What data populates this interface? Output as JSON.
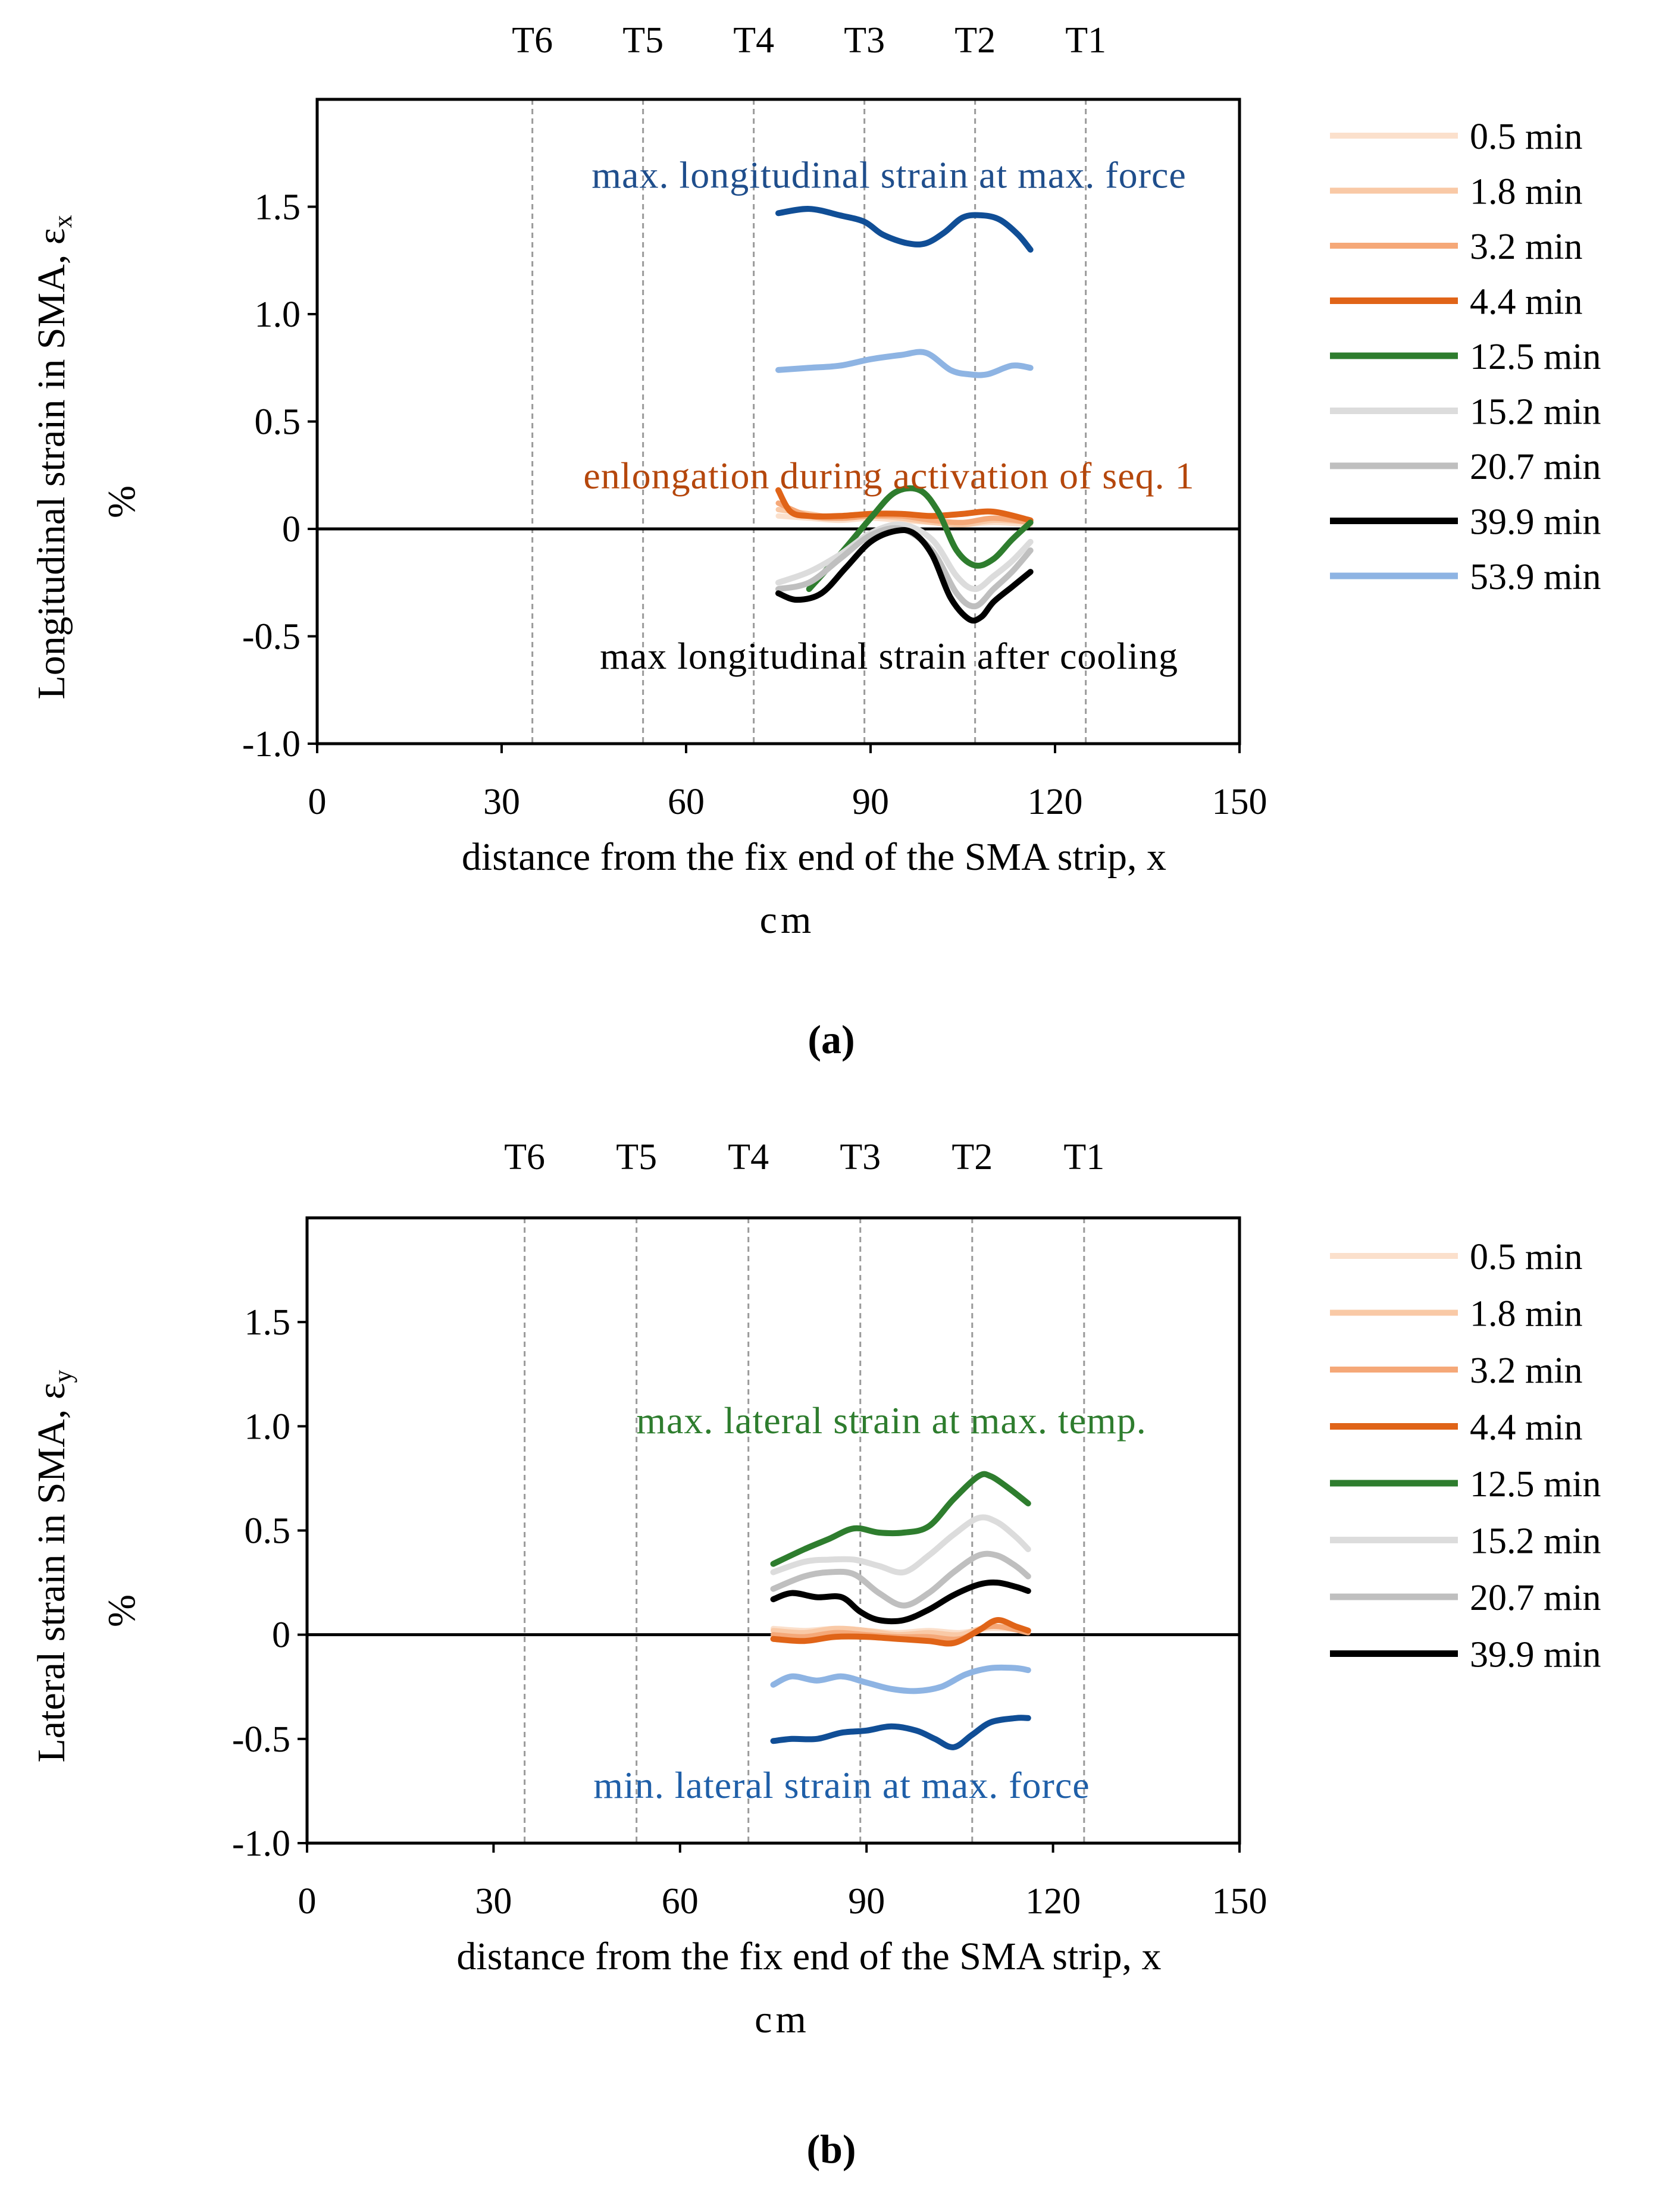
{
  "chart_data": [
    {
      "type": "line",
      "panel_label": "(a)",
      "xlabel_line1": "distance from the fix end of the SMA strip, x",
      "xlabel_line2": "cm",
      "ylabel_main": "Longitudinal strain in SMA, ε",
      "ylabel_sub": "x",
      "ylabel_unit": "%",
      "xlim": [
        0,
        150
      ],
      "ylim": [
        -1.0,
        2.0
      ],
      "xticks": [
        0,
        30,
        60,
        90,
        120,
        150
      ],
      "xtick_labels": [
        "0",
        "30",
        "60",
        "90",
        "120",
        "150"
      ],
      "yticks": [
        -1.0,
        -0.5,
        0,
        0.5,
        1.0,
        1.5
      ],
      "ytick_labels": [
        "-1.0",
        "-0.5",
        "0",
        "0.5",
        "1.0",
        "1.5"
      ],
      "sensors": [
        {
          "label": "T6",
          "x": 35
        },
        {
          "label": "T5",
          "x": 53
        },
        {
          "label": "T4",
          "x": 71
        },
        {
          "label": "T3",
          "x": 89
        },
        {
          "label": "T2",
          "x": 107
        },
        {
          "label": "T1",
          "x": 125
        }
      ],
      "annotations": [
        {
          "text": "max. longitudinal strain at max. force",
          "x": 93,
          "y": 1.65,
          "color": "#1f4e8c"
        },
        {
          "text": "enlongation during activation of seq. 1",
          "x": 93,
          "y": 0.25,
          "color": "#b5470c"
        },
        {
          "text": "max longitudinal strain after cooling",
          "x": 93,
          "y": -0.59,
          "color": "#000000"
        }
      ],
      "series": [
        {
          "name": "0.5 min",
          "color": "#fbe0cc",
          "width": 7,
          "x": [
            75,
            80,
            85,
            90,
            95,
            100,
            105,
            110,
            116
          ],
          "y": [
            0.06,
            0.05,
            0.04,
            0.05,
            0.04,
            0.03,
            0.02,
            0.03,
            0.02
          ]
        },
        {
          "name": "1.8 min",
          "color": "#f9c9a6",
          "width": 7,
          "x": [
            75,
            80,
            85,
            90,
            95,
            100,
            105,
            110,
            116
          ],
          "y": [
            0.09,
            0.07,
            0.05,
            0.06,
            0.05,
            0.03,
            0.02,
            0.04,
            0.03
          ]
        },
        {
          "name": "3.2 min",
          "color": "#f5a878",
          "width": 7,
          "x": [
            75,
            80,
            85,
            90,
            95,
            100,
            105,
            110,
            116
          ],
          "y": [
            0.12,
            0.06,
            0.05,
            0.06,
            0.06,
            0.04,
            0.03,
            0.05,
            0.03
          ]
        },
        {
          "name": "4.4 min",
          "color": "#e06418",
          "width": 8,
          "x": [
            75,
            77,
            80,
            85,
            90,
            95,
            100,
            105,
            110,
            116
          ],
          "y": [
            0.18,
            0.08,
            0.06,
            0.06,
            0.07,
            0.07,
            0.06,
            0.07,
            0.08,
            0.04
          ]
        },
        {
          "name": "12.5 min",
          "color": "#2e7d2e",
          "width": 8,
          "x": [
            80,
            85,
            90,
            94,
            98,
            101,
            104,
            107,
            110,
            113,
            116
          ],
          "y": [
            -0.28,
            -0.12,
            0.05,
            0.17,
            0.18,
            0.08,
            -0.1,
            -0.17,
            -0.14,
            -0.05,
            0.03
          ]
        },
        {
          "name": "15.2 min",
          "color": "#dcdcdc",
          "width": 8,
          "x": [
            75,
            80,
            85,
            90,
            95,
            100,
            104,
            107,
            110,
            113,
            116
          ],
          "y": [
            -0.25,
            -0.2,
            -0.12,
            -0.02,
            0.02,
            -0.05,
            -0.22,
            -0.28,
            -0.22,
            -0.15,
            -0.06
          ]
        },
        {
          "name": "20.7 min",
          "color": "#bfbfbf",
          "width": 8,
          "x": [
            75,
            80,
            85,
            90,
            95,
            100,
            104,
            107,
            110,
            113,
            116
          ],
          "y": [
            -0.28,
            -0.25,
            -0.14,
            -0.03,
            0.0,
            -0.1,
            -0.3,
            -0.36,
            -0.28,
            -0.2,
            -0.1
          ]
        },
        {
          "name": "39.9 min",
          "color": "#000000",
          "width": 8,
          "x": [
            75,
            78,
            82,
            86,
            90,
            94,
            97,
            100,
            103,
            106,
            108,
            110,
            113,
            116
          ],
          "y": [
            -0.3,
            -0.33,
            -0.3,
            -0.18,
            -0.06,
            -0.01,
            -0.02,
            -0.12,
            -0.32,
            -0.42,
            -0.41,
            -0.34,
            -0.27,
            -0.2
          ]
        },
        {
          "name": "53.9 min",
          "color": "#8eb4e3",
          "width": 8,
          "x": [
            75,
            80,
            85,
            90,
            95,
            99,
            103,
            106,
            109,
            113,
            116
          ],
          "y": [
            0.74,
            0.75,
            0.76,
            0.79,
            0.81,
            0.82,
            0.74,
            0.72,
            0.72,
            0.76,
            0.75
          ]
        },
        {
          "name": "",
          "color": "#104e96",
          "width": 8,
          "x": [
            75,
            80,
            85,
            89,
            92,
            96,
            99,
            102,
            105,
            108,
            111,
            114,
            116
          ],
          "y": [
            1.47,
            1.49,
            1.46,
            1.43,
            1.37,
            1.33,
            1.33,
            1.38,
            1.45,
            1.46,
            1.44,
            1.37,
            1.3
          ]
        }
      ]
    },
    {
      "type": "line",
      "panel_label": "(b)",
      "xlabel_line1": "distance from the fix end of the SMA strip, x",
      "xlabel_line2": "cm",
      "ylabel_main": "Lateral strain in SMA, ε",
      "ylabel_sub": "y",
      "ylabel_unit": "%",
      "xlim": [
        0,
        150
      ],
      "ylim": [
        -1.0,
        2.0
      ],
      "xticks": [
        0,
        30,
        60,
        90,
        120,
        150
      ],
      "xtick_labels": [
        "0",
        "30",
        "60",
        "90",
        "120",
        "150"
      ],
      "yticks": [
        -1.0,
        -0.5,
        0,
        0.5,
        1.0,
        1.5
      ],
      "ytick_labels": [
        "-1.0",
        "-0.5",
        "0",
        "0.5",
        "1.0",
        "1.5"
      ],
      "sensors": [
        {
          "label": "T6",
          "x": 35
        },
        {
          "label": "T5",
          "x": 53
        },
        {
          "label": "T4",
          "x": 71
        },
        {
          "label": "T3",
          "x": 89
        },
        {
          "label": "T2",
          "x": 107
        },
        {
          "label": "T1",
          "x": 125
        }
      ],
      "annotations": [
        {
          "text": "max. lateral strain at max. temp.",
          "x": 94,
          "y": 1.03,
          "color": "#2e7d2e"
        },
        {
          "text": "min. lateral strain at max. force",
          "x": 86,
          "y": -0.72,
          "color": "#1f5fa8"
        }
      ],
      "series": [
        {
          "name": "0.5 min",
          "color": "#fbe0cc",
          "width": 7,
          "x": [
            75,
            80,
            85,
            90,
            95,
            100,
            105,
            110,
            116
          ],
          "y": [
            0.03,
            0.02,
            0.03,
            0.02,
            0.01,
            0.02,
            0.01,
            0.03,
            0.02
          ]
        },
        {
          "name": "1.8 min",
          "color": "#f9c9a6",
          "width": 7,
          "x": [
            75,
            80,
            85,
            90,
            95,
            100,
            105,
            110,
            116
          ],
          "y": [
            0.02,
            0.01,
            0.03,
            0.02,
            0.0,
            0.01,
            0.0,
            0.04,
            0.02
          ]
        },
        {
          "name": "3.2 min",
          "color": "#f5a878",
          "width": 7,
          "x": [
            75,
            80,
            85,
            90,
            95,
            100,
            105,
            110,
            116
          ],
          "y": [
            0.0,
            -0.01,
            0.01,
            0.0,
            -0.01,
            -0.01,
            -0.02,
            0.04,
            0.01
          ]
        },
        {
          "name": "4.4 min",
          "color": "#e06418",
          "width": 8,
          "x": [
            75,
            80,
            85,
            90,
            95,
            100,
            104,
            108,
            111,
            114,
            116
          ],
          "y": [
            -0.02,
            -0.03,
            -0.01,
            -0.01,
            -0.02,
            -0.03,
            -0.04,
            0.02,
            0.07,
            0.04,
            0.02
          ]
        },
        {
          "name": "12.5 min",
          "color": "#2e7d2e",
          "width": 8,
          "x": [
            75,
            80,
            84,
            88,
            92,
            96,
            100,
            104,
            108,
            110,
            113,
            116
          ],
          "y": [
            0.34,
            0.41,
            0.46,
            0.51,
            0.49,
            0.49,
            0.52,
            0.65,
            0.76,
            0.76,
            0.7,
            0.63
          ]
        },
        {
          "name": "15.2 min",
          "color": "#dcdcdc",
          "width": 8,
          "x": [
            75,
            80,
            84,
            88,
            92,
            96,
            100,
            104,
            108,
            111,
            114,
            116
          ],
          "y": [
            0.3,
            0.35,
            0.36,
            0.36,
            0.33,
            0.3,
            0.38,
            0.48,
            0.56,
            0.54,
            0.47,
            0.41
          ]
        },
        {
          "name": "20.7 min",
          "color": "#bfbfbf",
          "width": 8,
          "x": [
            75,
            80,
            84,
            88,
            92,
            96,
            100,
            104,
            108,
            111,
            114,
            116
          ],
          "y": [
            0.22,
            0.28,
            0.3,
            0.29,
            0.2,
            0.14,
            0.2,
            0.3,
            0.38,
            0.38,
            0.33,
            0.28
          ]
        },
        {
          "name": "39.9 min",
          "color": "#000000",
          "width": 8,
          "x": [
            75,
            78,
            82,
            86,
            89,
            92,
            96,
            100,
            104,
            108,
            111,
            114,
            116
          ],
          "y": [
            0.17,
            0.2,
            0.18,
            0.18,
            0.11,
            0.07,
            0.07,
            0.12,
            0.19,
            0.24,
            0.25,
            0.23,
            0.21
          ]
        },
        {
          "name": "",
          "color": "#8eb4e3",
          "width": 8,
          "x": [
            75,
            78,
            82,
            86,
            90,
            94,
            98,
            102,
            106,
            110,
            114,
            116
          ],
          "y": [
            -0.24,
            -0.2,
            -0.22,
            -0.2,
            -0.23,
            -0.26,
            -0.27,
            -0.25,
            -0.19,
            -0.16,
            -0.16,
            -0.17
          ]
        },
        {
          "name": "",
          "color": "#104e96",
          "width": 8,
          "x": [
            75,
            78,
            82,
            86,
            90,
            94,
            98,
            101,
            104,
            107,
            110,
            114,
            116
          ],
          "y": [
            -0.51,
            -0.5,
            -0.5,
            -0.47,
            -0.46,
            -0.44,
            -0.46,
            -0.5,
            -0.54,
            -0.48,
            -0.42,
            -0.4,
            -0.4
          ]
        }
      ]
    }
  ]
}
